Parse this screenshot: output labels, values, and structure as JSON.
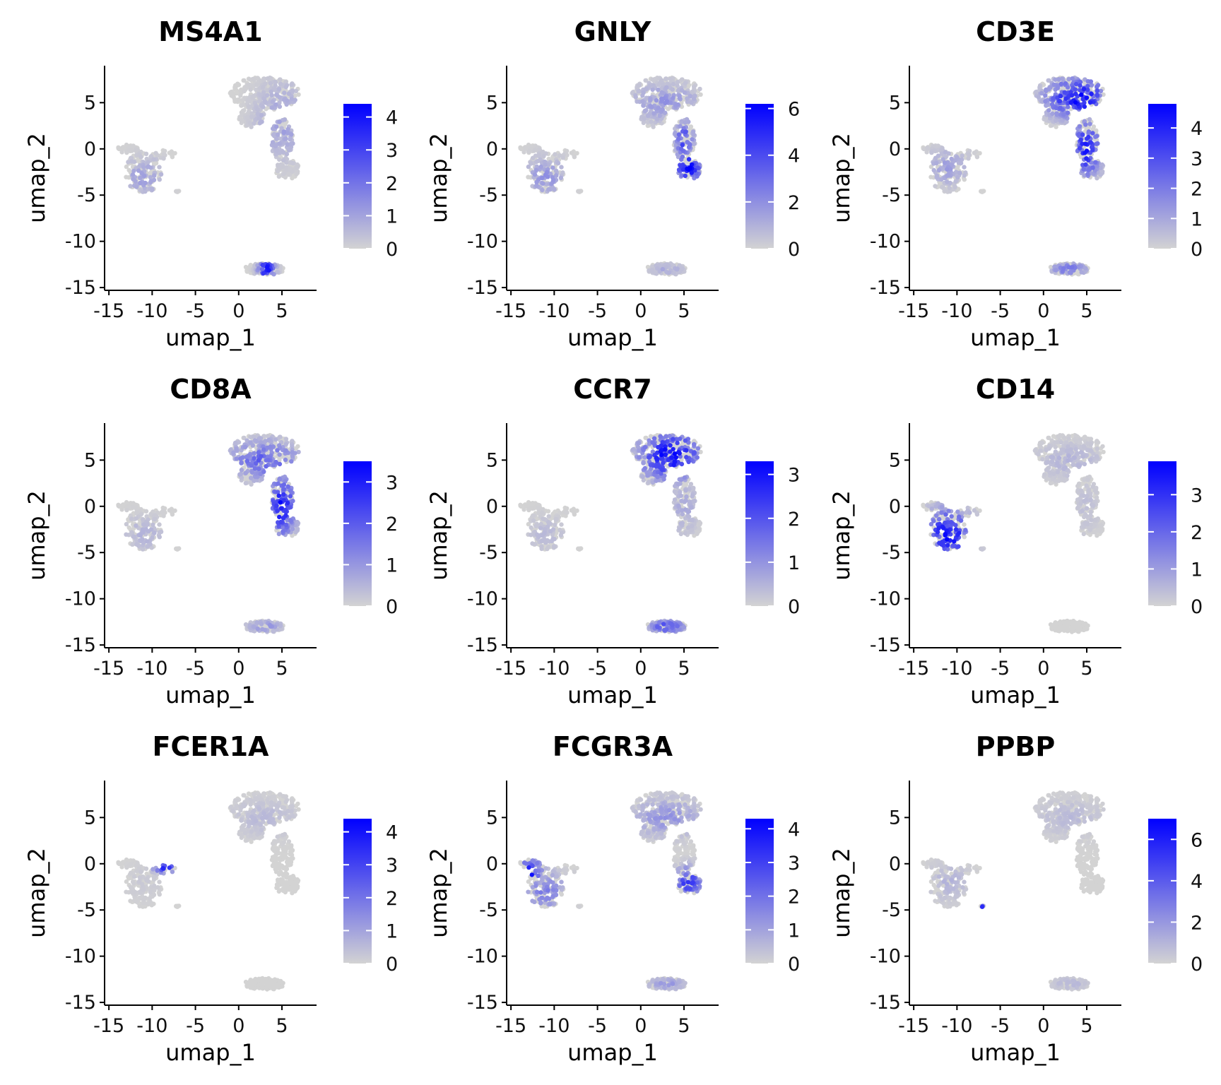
{
  "chart_data": {
    "type": "scatter",
    "panels": [
      {
        "title": "MS4A1",
        "scale_max": 4.4,
        "ticks": [
          0,
          1,
          2,
          3,
          4
        ],
        "hot": [
          [
            3.2,
            -13,
            0.9,
            1.0,
            0.95
          ],
          [
            -11,
            -3,
            2.5,
            2,
            0.25
          ],
          [
            5,
            3,
            3,
            4,
            0.25
          ]
        ]
      },
      {
        "title": "GNLY",
        "scale_max": 6.2,
        "ticks": [
          0,
          2,
          4,
          6
        ],
        "hot": [
          [
            5.5,
            -2,
            1.5,
            1.5,
            0.95
          ],
          [
            5,
            1,
            1,
            2,
            0.7
          ],
          [
            3,
            5,
            4,
            2,
            0.3
          ],
          [
            -11,
            -3,
            2.5,
            2,
            0.3
          ],
          [
            3,
            -13,
            2,
            0.6,
            0.2
          ]
        ]
      },
      {
        "title": "CD3E",
        "scale_max": 4.8,
        "ticks": [
          0,
          1,
          2,
          3,
          4
        ],
        "hot": [
          [
            4,
            5.5,
            3.5,
            2,
            0.95
          ],
          [
            5,
            0,
            1.5,
            3,
            0.85
          ],
          [
            -11,
            -2,
            2.5,
            2,
            0.25
          ],
          [
            3,
            -13,
            2,
            0.6,
            0.5
          ]
        ]
      },
      {
        "title": "CD8A",
        "scale_max": 3.5,
        "ticks": [
          0,
          1,
          2,
          3
        ],
        "hot": [
          [
            5,
            0,
            1.5,
            3,
            0.9
          ],
          [
            3,
            5,
            4,
            2,
            0.55
          ],
          [
            -11,
            -3,
            2.5,
            2,
            0.15
          ],
          [
            3,
            -13,
            2,
            0.6,
            0.3
          ]
        ]
      },
      {
        "title": "CCR7",
        "scale_max": 3.3,
        "ticks": [
          0,
          1,
          2,
          3
        ],
        "hot": [
          [
            3.5,
            5.5,
            3.5,
            2.5,
            0.95
          ],
          [
            5,
            0,
            1.5,
            3,
            0.2
          ],
          [
            -11,
            -3,
            2.5,
            2,
            0.12
          ],
          [
            3,
            -13,
            2,
            0.6,
            0.7
          ]
        ]
      },
      {
        "title": "CD14",
        "scale_max": 3.9,
        "ticks": [
          0,
          1,
          2,
          3
        ],
        "hot": [
          [
            -11,
            -3,
            2.5,
            2.5,
            0.95
          ],
          [
            3,
            5,
            4,
            2,
            0.15
          ],
          [
            5,
            0,
            1.5,
            3,
            0.1
          ]
        ]
      },
      {
        "title": "FCER1A",
        "scale_max": 4.4,
        "ticks": [
          0,
          1,
          2,
          3,
          4
        ],
        "hot": [
          [
            -8.5,
            -0.5,
            1.2,
            0.5,
            0.9
          ],
          [
            3,
            5,
            4,
            2,
            0.12
          ],
          [
            -11,
            -2,
            2.5,
            2,
            0.05
          ]
        ]
      },
      {
        "title": "FCGR3A",
        "scale_max": 4.3,
        "ticks": [
          0,
          1,
          2,
          3,
          4
        ],
        "hot": [
          [
            -13,
            -1,
            1.5,
            1.5,
            0.95
          ],
          [
            5.5,
            -2,
            1.5,
            1.5,
            0.75
          ],
          [
            -11,
            -3,
            2.5,
            2,
            0.4
          ],
          [
            3,
            5,
            4,
            2,
            0.3
          ],
          [
            3,
            -13,
            2,
            0.6,
            0.3
          ]
        ]
      },
      {
        "title": "PPBP",
        "scale_max": 7.0,
        "ticks": [
          0,
          2,
          4,
          6
        ],
        "hot": [
          [
            -7,
            -4.5,
            0.3,
            0.3,
            1.0
          ],
          [
            3,
            5,
            4,
            2,
            0.12
          ],
          [
            -11,
            -2,
            2.5,
            2,
            0.15
          ],
          [
            3,
            -13,
            2,
            0.6,
            0.15
          ]
        ]
      }
    ],
    "xlabel": "umap_1",
    "ylabel": "umap_2",
    "xlim": [
      -15.5,
      9
    ],
    "ylim": [
      -15.3,
      9
    ],
    "x_ticks": [
      -15,
      -10,
      -5,
      0,
      5
    ],
    "y_ticks": [
      -15,
      -10,
      -5,
      0,
      5
    ],
    "color_low": "#d3d3d3",
    "color_high": "#0000ff",
    "clusters": [
      {
        "cx": 3.0,
        "cy": 6.0,
        "rx": 4.0,
        "ry": 1.8,
        "n": 330
      },
      {
        "cx": 1.5,
        "cy": 3.5,
        "rx": 1.5,
        "ry": 1.2,
        "n": 90
      },
      {
        "cx": 5.0,
        "cy": 1.0,
        "rx": 1.3,
        "ry": 2.3,
        "n": 130
      },
      {
        "cx": 5.6,
        "cy": -2.2,
        "rx": 1.4,
        "ry": 1.1,
        "n": 90
      },
      {
        "cx": -11.0,
        "cy": -2.5,
        "rx": 2.2,
        "ry": 2.2,
        "n": 170
      },
      {
        "cx": -12.8,
        "cy": 0.0,
        "rx": 1.2,
        "ry": 0.45,
        "n": 45
      },
      {
        "cx": -8.5,
        "cy": -0.6,
        "rx": 1.2,
        "ry": 0.45,
        "n": 20
      },
      {
        "cx": -7.0,
        "cy": -4.6,
        "rx": 0.25,
        "ry": 0.2,
        "n": 6
      },
      {
        "cx": 3.0,
        "cy": -13.0,
        "rx": 2.3,
        "ry": 0.65,
        "n": 130
      }
    ]
  }
}
